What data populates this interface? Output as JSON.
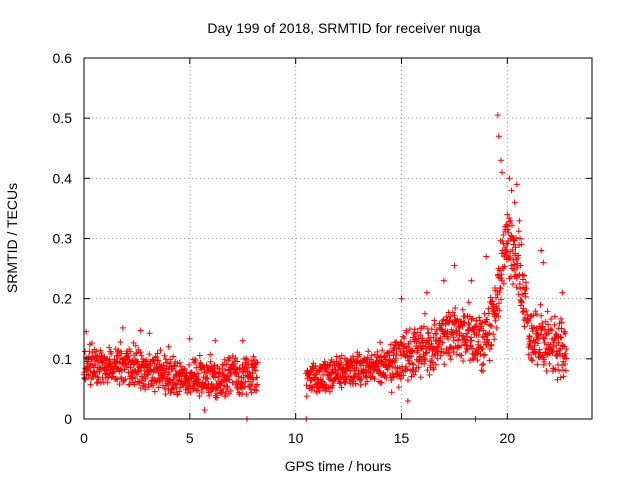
{
  "chart_data": {
    "type": "scatter",
    "title": "Day 199 of 2018, SRMTID for receiver nuga",
    "xlabel": "GPS time / hours",
    "ylabel": "SRMTID / TECUs",
    "xlim": [
      0,
      24
    ],
    "ylim": [
      0,
      0.6
    ],
    "xticks": [
      0,
      5,
      10,
      15,
      20
    ],
    "yticks": [
      0,
      0.1,
      0.2,
      0.3,
      0.4,
      0.5,
      0.6
    ],
    "xtick_labels": [
      "0",
      "5",
      "10",
      "15",
      "20"
    ],
    "ytick_labels": [
      "0",
      "0.1",
      "0.2",
      "0.3",
      "0.4",
      "0.5",
      "0.6"
    ],
    "grid": true,
    "marker": "+",
    "color": "#ff0000",
    "series": [
      {
        "name": "SRMTID",
        "segments": [
          {
            "t_start": 0.0,
            "t_end": 8.2,
            "baseline": [
              [
                0,
                0.085
              ],
              [
                1,
                0.085
              ],
              [
                2,
                0.085
              ],
              [
                3,
                0.078
              ],
              [
                4,
                0.072
              ],
              [
                5,
                0.07
              ],
              [
                6,
                0.068
              ],
              [
                7,
                0.072
              ],
              [
                8,
                0.075
              ]
            ],
            "spread": 0.03
          },
          {
            "t_start": 10.5,
            "t_end": 14.5,
            "baseline": [
              [
                10.5,
                0.06
              ],
              [
                11.5,
                0.07
              ],
              [
                12.5,
                0.08
              ],
              [
                13.5,
                0.085
              ],
              [
                14.5,
                0.09
              ]
            ],
            "spread": 0.025
          },
          {
            "t_start": 14.5,
            "t_end": 18.0,
            "baseline": [
              [
                14.5,
                0.09
              ],
              [
                15.5,
                0.105
              ],
              [
                16.5,
                0.12
              ],
              [
                17.5,
                0.145
              ],
              [
                18.0,
                0.14
              ]
            ],
            "spread": 0.04
          },
          {
            "t_start": 18.0,
            "t_end": 22.8,
            "baseline": [
              [
                18.0,
                0.14
              ],
              [
                19.0,
                0.13
              ],
              [
                19.5,
                0.2
              ],
              [
                20.0,
                0.3
              ],
              [
                20.5,
                0.25
              ],
              [
                21.0,
                0.15
              ],
              [
                22.0,
                0.12
              ],
              [
                22.8,
                0.11
              ]
            ],
            "spread": 0.05
          }
        ],
        "extra_points": [
          [
            19.55,
            0.505
          ],
          [
            19.6,
            0.47
          ],
          [
            19.7,
            0.43
          ],
          [
            19.75,
            0.41
          ],
          [
            20.1,
            0.4
          ],
          [
            20.2,
            0.38
          ],
          [
            20.35,
            0.36
          ],
          [
            20.45,
            0.39
          ],
          [
            20.0,
            0.34
          ],
          [
            19.9,
            0.32
          ],
          [
            20.6,
            0.3
          ],
          [
            21.6,
            0.28
          ],
          [
            21.7,
            0.26
          ],
          [
            17.5,
            0.255
          ],
          [
            19.0,
            0.27
          ],
          [
            15.0,
            0.2
          ],
          [
            16.2,
            0.21
          ],
          [
            17.0,
            0.23
          ],
          [
            18.3,
            0.23
          ],
          [
            22.6,
            0.21
          ],
          [
            7.7,
            0.0
          ],
          [
            10.5,
            0.0
          ],
          [
            18.5,
            0.0
          ],
          [
            0.1,
            0.145
          ],
          [
            4.0,
            0.12
          ],
          [
            6.2,
            0.13
          ],
          [
            7.5,
            0.13
          ],
          [
            15.3,
            0.03
          ],
          [
            5.7,
            0.015
          ]
        ]
      }
    ]
  }
}
